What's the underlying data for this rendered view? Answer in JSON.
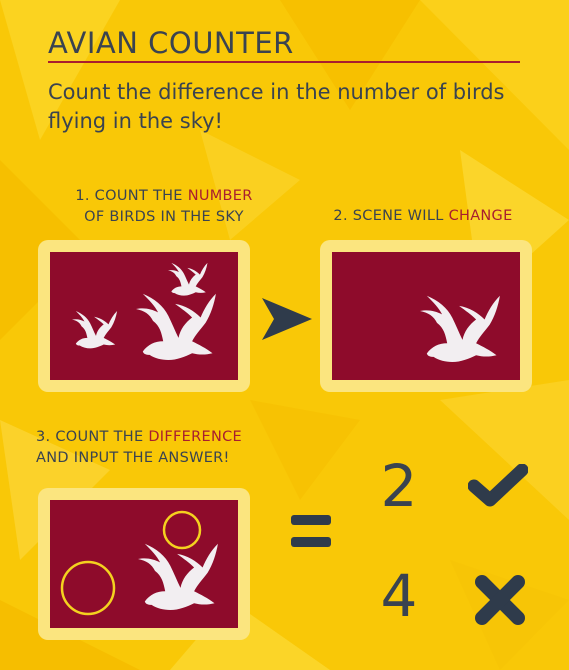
{
  "header": {
    "title": "AVIAN COUNTER",
    "subtitle": "Count the difference in the number of birds flying in the sky!"
  },
  "steps": {
    "step1": {
      "prefix": "1. COUNT THE ",
      "highlight": "NUMBER",
      "line2": "OF BIRDS IN THE SKY"
    },
    "step2": {
      "prefix": "2. SCENE WILL ",
      "highlight": "CHANGE"
    },
    "step3": {
      "prefix": "3. COUNT THE ",
      "highlight": "DIFFERENCE",
      "line2": "AND INPUT THE ANSWER!"
    }
  },
  "answers": [
    {
      "value": "2",
      "icon": "check-icon"
    },
    {
      "value": "4",
      "icon": "cross-icon"
    }
  ],
  "colors": {
    "background": "#f9c807",
    "sky": "#8e0b2b",
    "frame": "#fbe57f",
    "text": "#3a4350",
    "highlight": "#a81e2f",
    "circle": "#f4d21f"
  }
}
